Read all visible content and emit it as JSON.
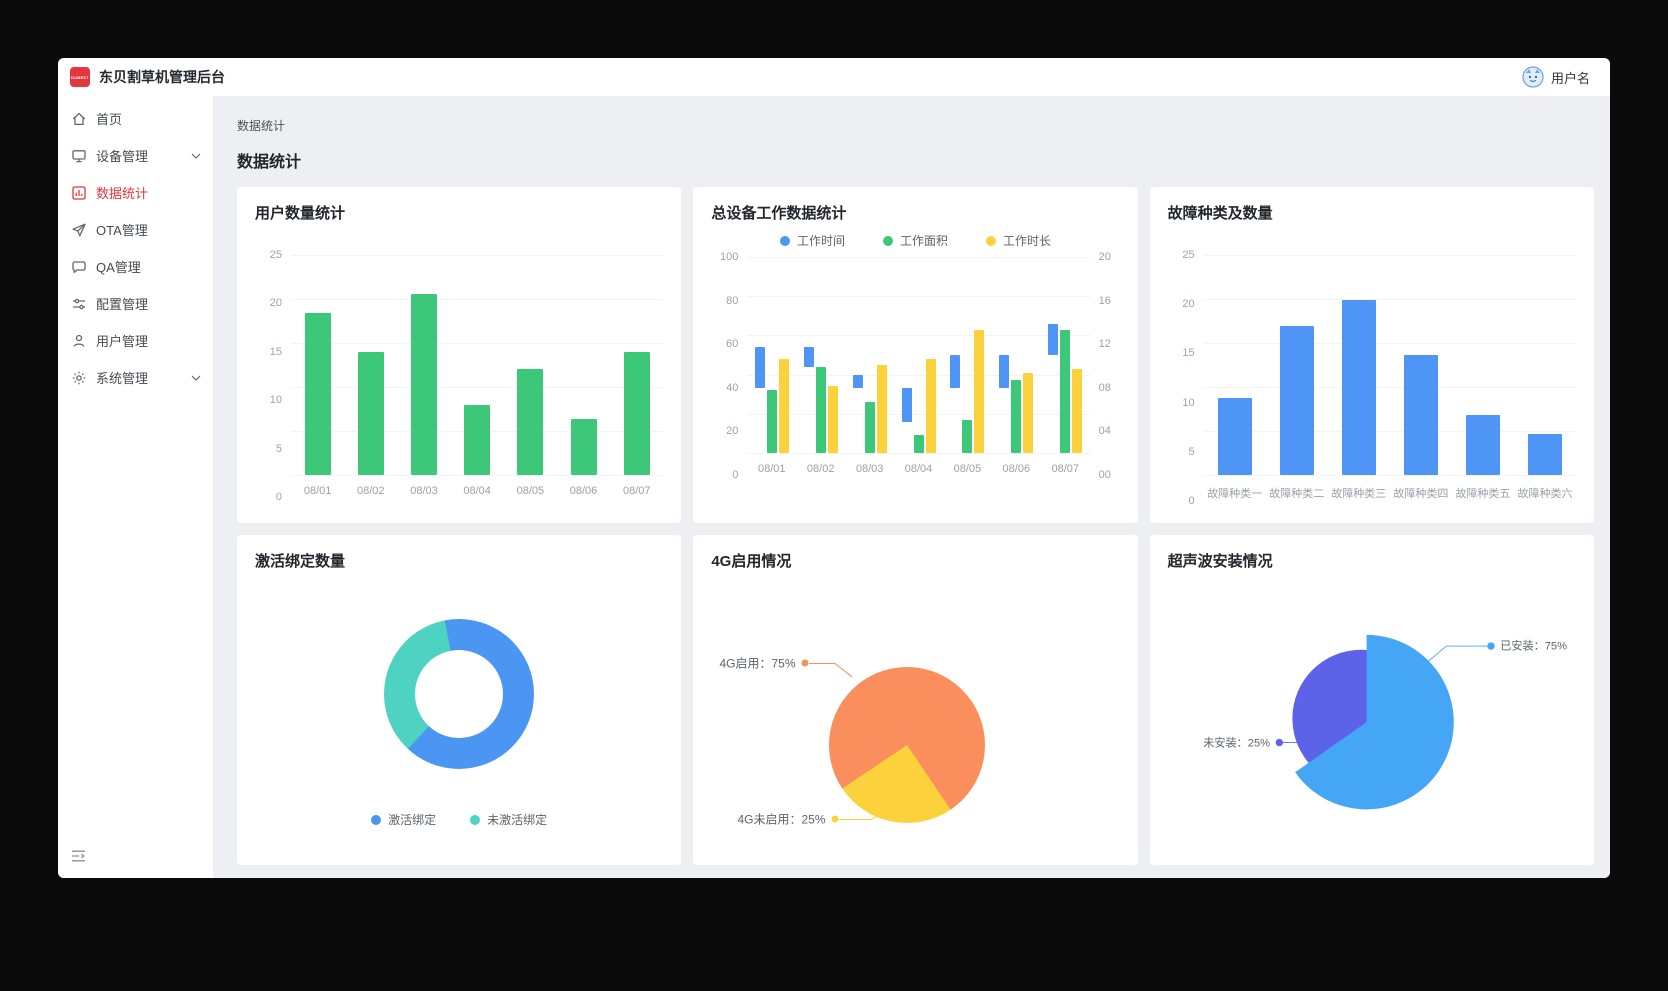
{
  "header": {
    "logo_text": "DUBEST",
    "app_title": "东贝割草机管理后台",
    "username": "用户名"
  },
  "sidebar": {
    "items": [
      {
        "label": "首页",
        "icon": "home",
        "active": false,
        "expandable": false
      },
      {
        "label": "设备管理",
        "icon": "monitor",
        "active": false,
        "expandable": true
      },
      {
        "label": "数据统计",
        "icon": "bar-chart",
        "active": true,
        "expandable": false
      },
      {
        "label": "OTA管理",
        "icon": "paper-plane",
        "active": false,
        "expandable": false
      },
      {
        "label": "QA管理",
        "icon": "chat-bubble",
        "active": false,
        "expandable": false
      },
      {
        "label": "配置管理",
        "icon": "sliders",
        "active": false,
        "expandable": false
      },
      {
        "label": "用户管理",
        "icon": "user",
        "active": false,
        "expandable": false
      },
      {
        "label": "系统管理",
        "icon": "gear",
        "active": false,
        "expandable": true
      }
    ]
  },
  "page": {
    "breadcrumb": "数据统计",
    "title": "数据统计"
  },
  "chart_data": [
    {
      "type": "bar",
      "title": "用户数量统计",
      "categories": [
        "08/01",
        "08/02",
        "08/03",
        "08/04",
        "08/05",
        "08/06",
        "08/07"
      ],
      "values": [
        18.4,
        14,
        20.6,
        8,
        12,
        6.4,
        14
      ],
      "ylim": [
        0,
        25
      ],
      "yticks": [
        "25",
        "20",
        "15",
        "10",
        "5",
        "0"
      ],
      "bar_color": "#3cc878",
      "grid": true
    },
    {
      "type": "grouped-bar",
      "title": "总设备工作数据统计",
      "categories": [
        "08/01",
        "08/02",
        "08/03",
        "08/04",
        "08/05",
        "08/06",
        "08/07"
      ],
      "series": [
        {
          "name": "工作时间",
          "color": "#4e95f5",
          "kind": "range",
          "values": [
            [
              33,
              54
            ],
            [
              44,
              54
            ],
            [
              33,
              40
            ],
            [
              16,
              33
            ],
            [
              33,
              50
            ],
            [
              33,
              50
            ],
            [
              50,
              66
            ]
          ]
        },
        {
          "name": "工作面积",
          "color": "#3cc878",
          "kind": "bar",
          "values": [
            32,
            44,
            26,
            9,
            17,
            37,
            63
          ]
        },
        {
          "name": "工作时长",
          "color": "#fcd23c",
          "kind": "bar",
          "values": [
            48,
            34,
            45,
            48,
            63,
            41,
            43
          ]
        }
      ],
      "ylim": [
        0,
        100
      ],
      "yticks_left": [
        "100",
        "80",
        "60",
        "40",
        "20",
        "0"
      ],
      "yticks_right": [
        "20",
        "16",
        "12",
        "08",
        "04",
        "00"
      ],
      "legend_position": "top",
      "grid": true
    },
    {
      "type": "bar",
      "title": "故障种类及数量",
      "categories": [
        "故障种类一",
        "故障种类二",
        "故障种类三",
        "故障种类四",
        "故障种类五",
        "故障种类六"
      ],
      "values": [
        8.8,
        16.9,
        19.9,
        13.6,
        6.8,
        4.7
      ],
      "ylim": [
        0,
        25
      ],
      "yticks": [
        "25",
        "20",
        "15",
        "10",
        "5",
        "0"
      ],
      "bar_color": "#4e95f5",
      "grid": true
    },
    {
      "type": "donut",
      "title": "激活绑定数量",
      "slices": [
        {
          "label": "激活绑定",
          "value": 65,
          "color": "#4b96f3"
        },
        {
          "label": "未激活绑定",
          "value": 35,
          "color": "#4ed2c2"
        }
      ],
      "start_angle_deg": 349,
      "legend_position": "bottom"
    },
    {
      "type": "pie",
      "title": "4G启用情况",
      "slices": [
        {
          "label": "4G启用",
          "value": 75,
          "pct": "75%",
          "label_text": "4G启用：75%",
          "color": "#fa8e5d"
        },
        {
          "label": "4G未启用",
          "value": 25,
          "pct": "25%",
          "label_text": "4G未启用：25%",
          "color": "#fcd23c"
        }
      ],
      "label_style": "leader-lines"
    },
    {
      "type": "rose",
      "title": "超声波安装情况",
      "slices": [
        {
          "label": "已安装",
          "value": 75,
          "pct": "75%",
          "label_text": "已安装：75%",
          "color": "#46a6f6"
        },
        {
          "label": "未安装",
          "value": 25,
          "pct": "25%",
          "label_text": "未安装：25%",
          "color": "#5c63e9"
        }
      ],
      "label_style": "leader-lines"
    }
  ],
  "colors": {
    "accent_red": "#e5353e",
    "bar_green": "#3cc878",
    "bar_blue": "#4e95f5",
    "bar_yellow": "#fcd23c",
    "donut_blue": "#4b96f3",
    "donut_teal": "#4ed2c2",
    "pie_orange": "#fa8e5d",
    "pie_yellow": "#fcd23c",
    "pie_lightblue": "#46a6f6",
    "pie_purple": "#5c63e9",
    "content_bg": "#edeff3"
  }
}
